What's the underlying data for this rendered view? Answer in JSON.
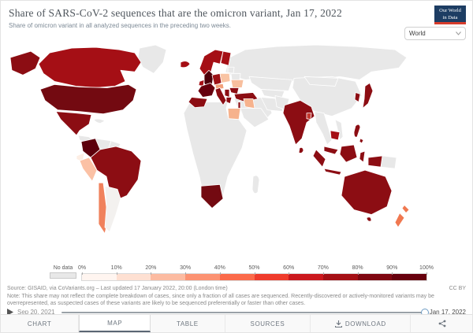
{
  "header": {
    "title": "Share of SARS-CoV-2 sequences that are the omicron variant, Jan 17, 2022",
    "subtitle": "Share of omicron variant in all analyzed sequences in the preceding two weeks.",
    "logo": {
      "line1": "Our World",
      "line2": "in Data",
      "bg": "#1d3d63",
      "accent": "#d73c2c"
    }
  },
  "region_selector": {
    "value": "World"
  },
  "legend": {
    "no_data_label": "No data",
    "no_data_color": "#e8e8e8",
    "ticks": [
      "0%",
      "10%",
      "20%",
      "30%",
      "40%",
      "50%",
      "60%",
      "70%",
      "80%",
      "90%",
      "100%"
    ],
    "colors": [
      "#fff5f0",
      "#fee0d2",
      "#fcbba1",
      "#fc9272",
      "#fb6a4a",
      "#ef3b2c",
      "#cb181d",
      "#a50f15",
      "#7f0711",
      "#67000d"
    ]
  },
  "source": {
    "text": "Source: GISAID, via CoVariants.org – Last updated 17 January 2022, 20:00 (London time)",
    "license": "CC BY",
    "note": "Note: This share may not reflect the complete breakdown of cases, since only a fraction of all cases are sequenced. Recently-discovered or actively-monitored variants may be overrepresented, as suspected cases of these variants are likely to be sequenced preferentially or faster than other cases."
  },
  "timeline": {
    "start": "Sep 20, 2021",
    "end": "Jan 17, 2022",
    "handle_color": "#6d9bc3"
  },
  "tabs": [
    {
      "label": "CHART"
    },
    {
      "label": "MAP",
      "active": true
    },
    {
      "label": "TABLE"
    },
    {
      "label": "SOURCES"
    },
    {
      "label": "DOWNLOAD"
    }
  ],
  "map": {
    "countries": {
      "russia": {
        "name": "Russia",
        "color": "#e8e8e8"
      },
      "greenland": {
        "name": "Greenland",
        "color": "#e8e8e8"
      },
      "canada": {
        "name": "Canada",
        "color": "#a50f15"
      },
      "alaska": {
        "name": "United States (Alaska)",
        "color": "#8c0d13"
      },
      "usa": {
        "name": "United States",
        "color": "#730a11"
      },
      "mexico": {
        "name": "Mexico",
        "color": "#8c0d13"
      },
      "central-america": {
        "name": "Central America",
        "color": "#e8e8e8"
      },
      "cuba": {
        "name": "Cuba",
        "color": "#e8e8e8"
      },
      "colombia": {
        "name": "Colombia",
        "color": "#5c000c"
      },
      "venezuela": {
        "name": "Venezuela",
        "color": "#e8e8e8"
      },
      "guyanas": {
        "name": "Guyana / Suriname",
        "color": "#e8e8e8"
      },
      "ecuador": {
        "name": "Ecuador",
        "color": "#fdeee4"
      },
      "peru": {
        "name": "Peru",
        "color": "#fbc1a5"
      },
      "brazil": {
        "name": "Brazil",
        "color": "#8c0d13"
      },
      "bolivia": {
        "name": "Bolivia",
        "color": "#e8e8e8"
      },
      "paraguay": {
        "name": "Paraguay",
        "color": "#e8e8e8"
      },
      "chile": {
        "name": "Chile",
        "color": "#f0815c"
      },
      "argentina": {
        "name": "Argentina",
        "color": "#f3f1ef"
      },
      "iceland": {
        "name": "Iceland",
        "color": "#a50f15"
      },
      "uk": {
        "name": "United Kingdom",
        "color": "#4d000a"
      },
      "ireland": {
        "name": "Ireland",
        "color": "#a50f15"
      },
      "norway-sweden": {
        "name": "Norway / Sweden",
        "color": "#a50f15"
      },
      "finland": {
        "name": "Finland",
        "color": "#a50f15"
      },
      "baltics": {
        "name": "Baltic states",
        "color": "#e8e8e8"
      },
      "east-europe": {
        "name": "Belarus",
        "color": "#e8e8e8"
      },
      "poland": {
        "name": "Poland",
        "color": "#f9c4a4"
      },
      "germany": {
        "name": "Germany",
        "color": "#9c1116"
      },
      "france": {
        "name": "France",
        "color": "#67000d"
      },
      "spain": {
        "name": "Spain / Portugal",
        "color": "#8c0d13"
      },
      "italy": {
        "name": "Italy",
        "color": "#8c0d13"
      },
      "czech-austria": {
        "name": "Czechia / Austria",
        "color": "#f2a07a"
      },
      "ukraine": {
        "name": "Ukraine",
        "color": "#f8bf9e"
      },
      "romania": {
        "name": "Romania",
        "color": "#8c0d13"
      },
      "balkans": {
        "name": "Balkans",
        "color": "#8c0d13"
      },
      "greece": {
        "name": "Greece",
        "color": "#8c0d13"
      },
      "turkey": {
        "name": "Turkey",
        "color": "#8c0d13"
      },
      "kazakhstan": {
        "name": "Kazakhstan",
        "color": "#e8e8e8"
      },
      "central-asia": {
        "name": "Central Asia",
        "color": "#e8e8e8"
      },
      "china": {
        "name": "China",
        "color": "#e8e8e8"
      },
      "mongolia": {
        "name": "Mongolia",
        "color": "#e8e8e8"
      },
      "middle-east": {
        "name": "Middle East",
        "color": "#e8e8e8"
      },
      "iran": {
        "name": "Iran",
        "color": "#e8e8e8"
      },
      "iraq": {
        "name": "Iraq",
        "color": "#f6b28d"
      },
      "saudi-arabia": {
        "name": "Saudi Arabia",
        "color": "#e8e8e8"
      },
      "israel": {
        "name": "Israel",
        "color": "#8c0d13"
      },
      "egypt": {
        "name": "Egypt",
        "color": "#f6b28d"
      },
      "africa": {
        "name": "Africa (no data)",
        "color": "#e8e8e8"
      },
      "south-africa": {
        "name": "South Africa / Botswana",
        "color": "#730a11"
      },
      "madagascar": {
        "name": "Madagascar",
        "color": "#e8e8e8"
      },
      "pakistan": {
        "name": "Pakistan / Afghanistan",
        "color": "#e8e8e8"
      },
      "india": {
        "name": "India",
        "color": "#8c0d13"
      },
      "bangladesh": {
        "name": "Bangladesh",
        "color": "#c3392f"
      },
      "sri-lanka": {
        "name": "Sri Lanka",
        "color": "#8c0d13"
      },
      "indochina": {
        "name": "Myanmar / Thailand",
        "color": "#e8e8e8"
      },
      "cambodia": {
        "name": "Cambodia",
        "color": "#a50f15"
      },
      "vietnam": {
        "name": "Vietnam",
        "color": "#e8e8e8"
      },
      "south-korea": {
        "name": "South Korea",
        "color": "#8c0d13"
      },
      "japan": {
        "name": "Japan",
        "color": "#8c0d13"
      },
      "philippines": {
        "name": "Philippines",
        "color": "#8c0d13"
      },
      "malaysia": {
        "name": "Malaysia",
        "color": "#8c0d13"
      },
      "indonesia": {
        "name": "Indonesia",
        "color": "#8c0d13"
      },
      "papua-new-guinea": {
        "name": "Papua New Guinea",
        "color": "#e8e8e8"
      },
      "australia": {
        "name": "Australia",
        "color": "#8c0d13"
      },
      "new-zealand": {
        "name": "New Zealand",
        "color": "#f07850"
      }
    }
  }
}
